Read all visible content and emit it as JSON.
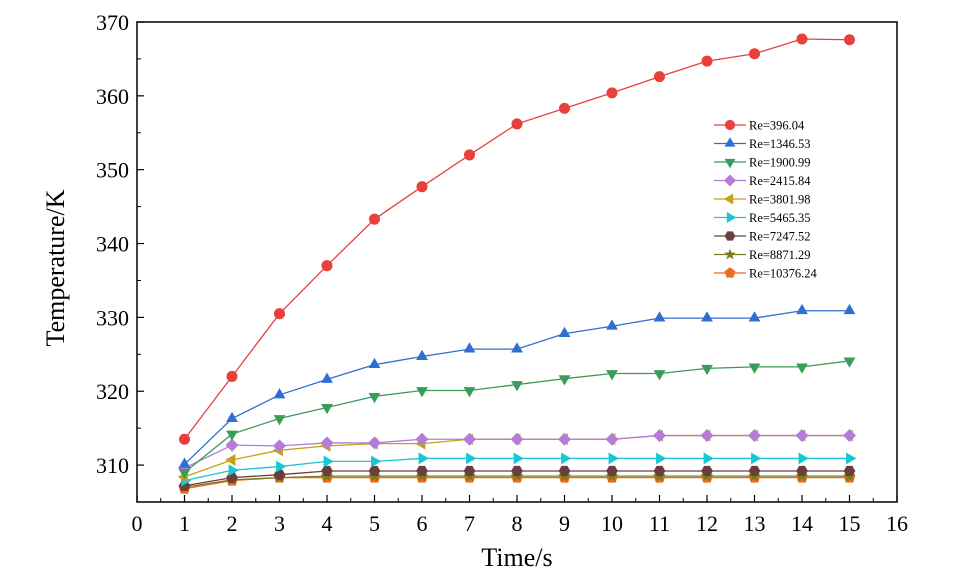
{
  "chart_data": {
    "type": "line",
    "title": "",
    "xlabel": "Time/s",
    "ylabel": "Temperature/K",
    "xlim": [
      0,
      16
    ],
    "ylim": [
      305,
      370
    ],
    "xticks": [
      0,
      1,
      2,
      3,
      4,
      5,
      6,
      7,
      8,
      9,
      10,
      11,
      12,
      13,
      14,
      15,
      16
    ],
    "yticks": [
      310,
      320,
      330,
      340,
      350,
      360,
      370
    ],
    "legend_position": "right",
    "x": [
      1,
      2,
      3,
      4,
      5,
      6,
      7,
      8,
      9,
      10,
      11,
      12,
      13,
      14,
      15
    ],
    "series": [
      {
        "name": "Re=396.04",
        "color": "#e8403f",
        "marker": "circle",
        "values": [
          313.5,
          322.0,
          330.5,
          337.0,
          343.3,
          347.7,
          352.0,
          356.2,
          358.3,
          360.4,
          362.6,
          364.7,
          365.7,
          367.7,
          367.6
        ]
      },
      {
        "name": "Re=1346.53",
        "color": "#2f6fd1",
        "marker": "triangle-up",
        "values": [
          310.1,
          316.3,
          319.5,
          321.6,
          323.6,
          324.7,
          325.7,
          325.7,
          327.8,
          328.8,
          329.9,
          329.9,
          329.9,
          330.9,
          330.9
        ]
      },
      {
        "name": "Re=1900.99",
        "color": "#3a9c5a",
        "marker": "triangle-down",
        "values": [
          309.0,
          314.2,
          316.3,
          317.8,
          319.3,
          320.1,
          320.1,
          320.9,
          321.7,
          322.4,
          322.4,
          323.1,
          323.3,
          323.3,
          324.1
        ]
      },
      {
        "name": "Re=2415.84",
        "color": "#b57bd9",
        "marker": "diamond",
        "values": [
          309.6,
          312.7,
          312.6,
          313.0,
          313.0,
          313.5,
          313.5,
          313.5,
          313.5,
          313.5,
          314.0,
          314.0,
          314.0,
          314.0,
          314.0
        ]
      },
      {
        "name": "Re=3801.98",
        "color": "#c6a115",
        "marker": "triangle-left",
        "values": [
          308.4,
          310.7,
          312.0,
          312.6,
          312.9,
          312.9,
          313.5,
          313.5,
          313.5,
          313.5,
          314.0,
          314.0,
          314.0,
          314.0,
          314.0
        ]
      },
      {
        "name": "Re=5465.35",
        "color": "#19c6d3",
        "marker": "triangle-right",
        "values": [
          307.9,
          309.3,
          309.8,
          310.5,
          310.5,
          310.9,
          310.9,
          310.9,
          310.9,
          310.9,
          310.9,
          310.9,
          310.9,
          310.9,
          310.9
        ]
      },
      {
        "name": "Re=7247.52",
        "color": "#6b3e3e",
        "marker": "hexagon",
        "values": [
          307.2,
          308.3,
          308.7,
          309.2,
          309.2,
          309.2,
          309.2,
          309.2,
          309.2,
          309.2,
          309.2,
          309.2,
          309.2,
          309.2,
          309.2
        ]
      },
      {
        "name": "Re=8871.29",
        "color": "#7a7a1f",
        "marker": "star",
        "values": [
          307.0,
          308.0,
          308.3,
          308.5,
          308.5,
          308.5,
          308.5,
          308.5,
          308.5,
          308.5,
          308.5,
          308.5,
          308.5,
          308.5,
          308.5
        ]
      },
      {
        "name": "Re=10376.24",
        "color": "#ee6a1d",
        "marker": "pentagon",
        "values": [
          306.8,
          307.9,
          308.3,
          308.3,
          308.3,
          308.3,
          308.3,
          308.3,
          308.3,
          308.3,
          308.3,
          308.3,
          308.3,
          308.3,
          308.3
        ]
      }
    ]
  }
}
